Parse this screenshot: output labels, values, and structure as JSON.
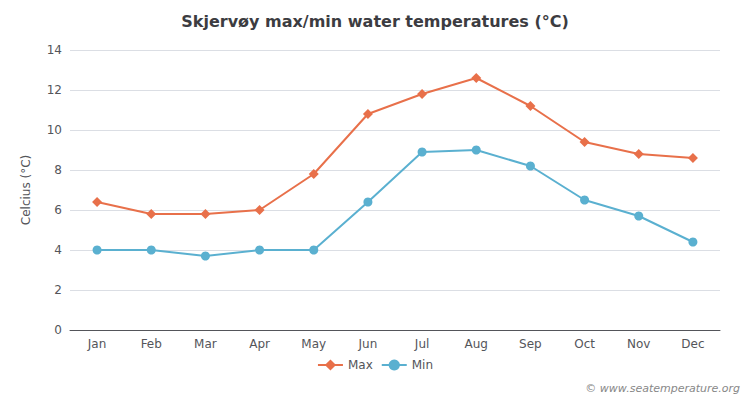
{
  "chart_data": {
    "type": "line",
    "title": "Skjervøy max/min water temperatures (°C)",
    "ylabel": "Celcius (°C)",
    "categories": [
      "Jan",
      "Feb",
      "Mar",
      "Apr",
      "May",
      "Jun",
      "Jul",
      "Aug",
      "Sep",
      "Oct",
      "Nov",
      "Dec"
    ],
    "series": [
      {
        "name": "Max",
        "color": "#e8704a",
        "marker": "diamond",
        "values": [
          6.4,
          5.8,
          5.8,
          6.0,
          7.8,
          10.8,
          11.8,
          12.6,
          11.2,
          9.4,
          8.8,
          8.6
        ]
      },
      {
        "name": "Min",
        "color": "#5ab0d0",
        "marker": "circle",
        "values": [
          4.0,
          4.0,
          3.7,
          4.0,
          4.0,
          6.4,
          8.9,
          9.0,
          8.2,
          6.5,
          5.7,
          4.4
        ]
      }
    ],
    "ylim": [
      0,
      14
    ],
    "yticks": [
      0,
      2,
      4,
      6,
      8,
      10,
      12,
      14
    ],
    "grid": true,
    "legend": "bottom",
    "annotations": [
      "© www.seatemperature.org"
    ]
  }
}
